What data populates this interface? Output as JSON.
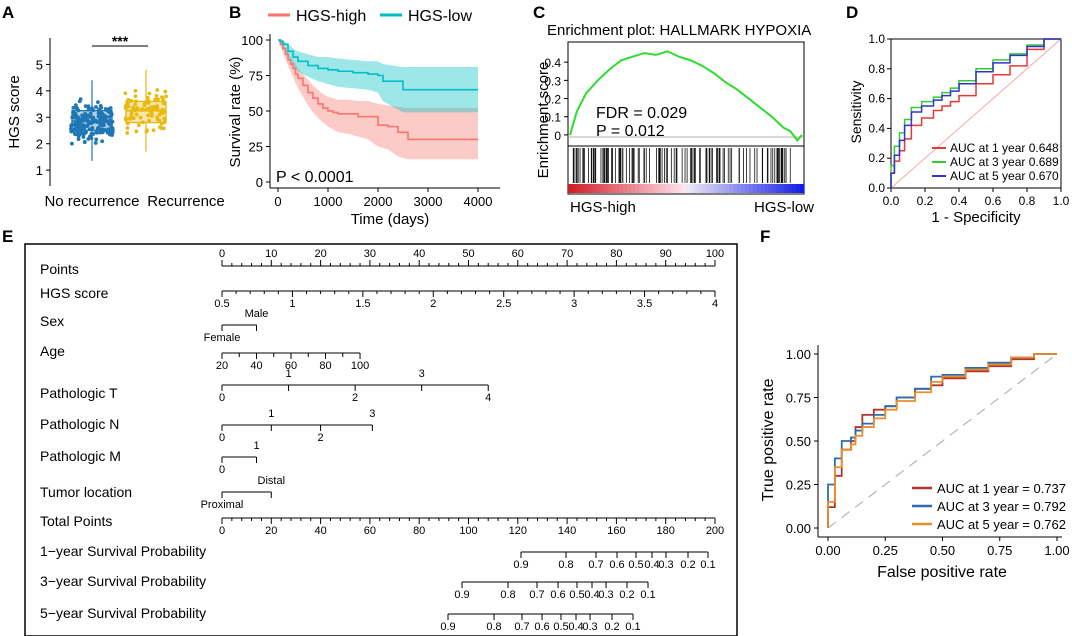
{
  "colors": {
    "red": "#F8766D",
    "teal": "#00BFC4",
    "blue": "#1F77B4",
    "yellow": "#E8B90F",
    "green": "#2EDB2E",
    "roc_red": "#E53935",
    "roc_green": "#33CC33",
    "roc_blue": "#3333CC",
    "f_red": "#B5332E",
    "f_blue": "#2A6DB0",
    "f_orange": "#E98E2B"
  },
  "panels": {
    "A": {
      "letter": "A",
      "ylabel": "HGS score",
      "yticks": [
        "1",
        "2",
        "3",
        "4",
        "5"
      ],
      "groups": [
        "No recurrence",
        "Recurrence"
      ],
      "sig": "***"
    },
    "B": {
      "letter": "B",
      "legend": [
        "HGS-high",
        "HGS-low"
      ],
      "ylabel": "Survival rate (%)",
      "xlabel": "Time (days)",
      "yticks": [
        "0",
        "25",
        "50",
        "75",
        "100"
      ],
      "xticks": [
        "0",
        "1000",
        "2000",
        "3000",
        "4000"
      ],
      "pval": "P < 0.0001"
    },
    "C": {
      "letter": "C",
      "title": "Enrichment plot: HALLMARK HYPOXIA",
      "ylabel": "Enrichment score",
      "yticks": [
        "0",
        "0.1",
        "0.2",
        "0.3",
        "0.4"
      ],
      "fdr": "FDR = 0.029",
      "pval": "P  = 0.012",
      "left_label": "HGS-high",
      "right_label": "HGS-low"
    },
    "D": {
      "letter": "D",
      "ylabel": "Sensitivity",
      "xlabel": "1 - Specificity",
      "ticks": [
        "0.0",
        "0.2",
        "0.4",
        "0.6",
        "0.8",
        "1.0"
      ],
      "legend": [
        "AUC at 1 year 0.648",
        "AUC at 3 year 0.689",
        "AUC at 5 year 0.670"
      ]
    },
    "E": {
      "letter": "E",
      "rows": [
        {
          "label": "Points",
          "ticks": [
            "0",
            "10",
            "20",
            "30",
            "40",
            "50",
            "60",
            "70",
            "80",
            "90",
            "100"
          ]
        },
        {
          "label": "HGS score",
          "ticks": [
            "0.5",
            "1",
            "1.5",
            "2",
            "2.5",
            "3",
            "3.5",
            "4"
          ]
        },
        {
          "label": "Sex",
          "ticks": [
            "Female",
            "Male"
          ]
        },
        {
          "label": "Age",
          "ticks": [
            "20",
            "40",
            "60",
            "80",
            "100"
          ]
        },
        {
          "label": "Pathologic T",
          "ticks": [
            "0",
            "1",
            "2",
            "3",
            "4"
          ]
        },
        {
          "label": "Pathologic N",
          "ticks": [
            "0",
            "1",
            "2",
            "3"
          ]
        },
        {
          "label": "Pathologic M",
          "ticks": [
            "0",
            "1"
          ]
        },
        {
          "label": "Tumor location",
          "ticks": [
            "Proximal",
            "Distal"
          ]
        },
        {
          "label": "Total Points",
          "ticks": [
            "0",
            "20",
            "40",
            "60",
            "80",
            "100",
            "120",
            "140",
            "160",
            "180",
            "200"
          ]
        },
        {
          "label": "1−year Survival Probability",
          "ticks": [
            "0.9",
            "0.8",
            "0.7",
            "0.6",
            "0.5",
            "0.4",
            "0.3",
            "0.2",
            "0.1"
          ]
        },
        {
          "label": "3−year Survival Probability",
          "ticks": [
            "0.9",
            "0.8",
            "0.7",
            "0.6",
            "0.5",
            "0.4",
            "0.3",
            "0.2",
            "0.1"
          ]
        },
        {
          "label": "5−year Survival Probability",
          "ticks": [
            "0.9",
            "0.8",
            "0.7",
            "0.6",
            "0.5",
            "0.4",
            "0.3",
            "0.2",
            "0.1"
          ]
        }
      ]
    },
    "F": {
      "letter": "F",
      "ylabel": "True positive rate",
      "xlabel": "False positive rate",
      "ticks": [
        "0.00",
        "0.25",
        "0.50",
        "0.75",
        "1.00"
      ],
      "legend": [
        "AUC at 1 year = 0.737",
        "AUC at 3 year = 0.792",
        "AUC at 5 year = 0.762"
      ]
    }
  },
  "chart_data": [
    {
      "type": "scatter",
      "panel": "A",
      "title": "",
      "xlabel": "",
      "ylabel": "HGS score",
      "categories": [
        "No recurrence",
        "Recurrence"
      ],
      "ylim": [
        0.4,
        6.0
      ],
      "boxes": [
        {
          "name": "No recurrence",
          "q1": 2.5,
          "median": 2.85,
          "q3": 3.25,
          "whisker_low": 1.35,
          "whisker_high": 4.4
        },
        {
          "name": "Recurrence",
          "q1": 2.8,
          "median": 3.25,
          "q3": 3.6,
          "whisker_low": 1.7,
          "whisker_high": 4.8
        }
      ],
      "annotation": "***"
    },
    {
      "type": "line",
      "panel": "B",
      "title": "",
      "xlabel": "Time (days)",
      "ylabel": "Survival rate (%)",
      "xlim": [
        0,
        4200
      ],
      "ylim": [
        0,
        100
      ],
      "series": [
        {
          "name": "HGS-high",
          "x": [
            0,
            50,
            100,
            150,
            200,
            250,
            300,
            350,
            400,
            500,
            600,
            700,
            800,
            900,
            1000,
            1100,
            1200,
            1400,
            1600,
            1800,
            2000,
            2200,
            2400,
            2600,
            4000
          ],
          "y": [
            100,
            97,
            94,
            90,
            86,
            83,
            80,
            76,
            73,
            68,
            63,
            59,
            55,
            52,
            50,
            49,
            48,
            48,
            46,
            46,
            40,
            39,
            35,
            30,
            30
          ],
          "lower": [
            100,
            95,
            91,
            86,
            82,
            78,
            74,
            70,
            66,
            60,
            54,
            49,
            45,
            42,
            39,
            37,
            35,
            34,
            32,
            30,
            25,
            23,
            18,
            16,
            16
          ],
          "upper": [
            100,
            99,
            97,
            94,
            91,
            88,
            86,
            83,
            80,
            76,
            72,
            68,
            65,
            62,
            60,
            59,
            58,
            58,
            57,
            57,
            55,
            54,
            53,
            52,
            52
          ]
        },
        {
          "name": "HGS-low",
          "x": [
            0,
            50,
            100,
            200,
            300,
            400,
            600,
            800,
            1000,
            1200,
            1500,
            1800,
            2000,
            2100,
            2500,
            4000
          ],
          "y": [
            100,
            99,
            97,
            92,
            88,
            85,
            82,
            80,
            79,
            78,
            77,
            76,
            75,
            71,
            65,
            65
          ],
          "lower": [
            100,
            97,
            94,
            87,
            82,
            78,
            74,
            71,
            69,
            67,
            66,
            65,
            63,
            57,
            49,
            49
          ],
          "upper": [
            100,
            100,
            100,
            97,
            94,
            92,
            90,
            88,
            88,
            87,
            86,
            85,
            85,
            83,
            81,
            81
          ]
        }
      ],
      "annotation": "P < 0.0001"
    },
    {
      "type": "line",
      "panel": "C",
      "title": "Enrichment plot: HALLMARK HYPOXIA",
      "xlabel": "",
      "ylabel": "Enrichment score",
      "ylim": [
        -0.05,
        0.5
      ],
      "series": [
        {
          "name": "Enrichment score",
          "x": [
            0,
            0.03,
            0.07,
            0.12,
            0.17,
            0.22,
            0.27,
            0.32,
            0.37,
            0.42,
            0.47,
            0.52,
            0.57,
            0.62,
            0.67,
            0.72,
            0.77,
            0.82,
            0.87,
            0.92,
            0.95,
            0.98,
            1.0
          ],
          "y": [
            0,
            0.13,
            0.23,
            0.3,
            0.36,
            0.41,
            0.43,
            0.45,
            0.44,
            0.46,
            0.43,
            0.41,
            0.38,
            0.34,
            0.29,
            0.25,
            0.2,
            0.15,
            0.1,
            0.04,
            0.02,
            -0.03,
            0
          ]
        }
      ],
      "annotation": [
        "FDR = 0.029",
        "P  = 0.012"
      ]
    },
    {
      "type": "line",
      "panel": "D",
      "title": "",
      "xlabel": "1 - Specificity",
      "ylabel": "Sensitivity",
      "xlim": [
        0,
        1
      ],
      "ylim": [
        0,
        1
      ],
      "series": [
        {
          "name": "AUC at 1 year 0.648",
          "x": [
            0,
            0.02,
            0.05,
            0.08,
            0.12,
            0.18,
            0.25,
            0.3,
            0.35,
            0.4,
            0.5,
            0.6,
            0.7,
            0.8,
            0.9,
            1.0
          ],
          "y": [
            0,
            0.1,
            0.18,
            0.25,
            0.33,
            0.42,
            0.47,
            0.52,
            0.55,
            0.58,
            0.62,
            0.7,
            0.76,
            0.82,
            0.93,
            1.0
          ]
        },
        {
          "name": "AUC at 3 year 0.689",
          "x": [
            0,
            0.02,
            0.05,
            0.08,
            0.12,
            0.18,
            0.25,
            0.3,
            0.35,
            0.4,
            0.5,
            0.6,
            0.7,
            0.8,
            0.9,
            1.0
          ],
          "y": [
            0,
            0.15,
            0.28,
            0.37,
            0.46,
            0.54,
            0.58,
            0.61,
            0.64,
            0.67,
            0.72,
            0.8,
            0.86,
            0.9,
            0.96,
            1.0
          ]
        },
        {
          "name": "AUC at 5 year 0.670",
          "x": [
            0,
            0.02,
            0.05,
            0.08,
            0.12,
            0.18,
            0.25,
            0.3,
            0.35,
            0.4,
            0.5,
            0.6,
            0.7,
            0.8,
            0.9,
            1.0
          ],
          "y": [
            0,
            0.1,
            0.22,
            0.32,
            0.42,
            0.51,
            0.55,
            0.59,
            0.62,
            0.65,
            0.7,
            0.78,
            0.84,
            0.89,
            0.95,
            1.0
          ]
        }
      ]
    },
    {
      "type": "line",
      "panel": "F",
      "title": "",
      "xlabel": "False positive rate",
      "ylabel": "True positive rate",
      "xlim": [
        0,
        1
      ],
      "ylim": [
        0,
        1
      ],
      "series": [
        {
          "name": "AUC at 1 year = 0.737",
          "x": [
            0,
            0.03,
            0.06,
            0.1,
            0.12,
            0.15,
            0.2,
            0.25,
            0.3,
            0.38,
            0.45,
            0.5,
            0.6,
            0.7,
            0.8,
            0.9,
            1.0
          ],
          "y": [
            0,
            0.12,
            0.3,
            0.45,
            0.5,
            0.58,
            0.65,
            0.68,
            0.7,
            0.75,
            0.8,
            0.82,
            0.86,
            0.9,
            0.93,
            0.97,
            1.0
          ]
        },
        {
          "name": "AUC at 3 year = 0.792",
          "x": [
            0,
            0.03,
            0.06,
            0.1,
            0.12,
            0.15,
            0.2,
            0.25,
            0.3,
            0.38,
            0.45,
            0.5,
            0.6,
            0.7,
            0.8,
            0.9,
            1.0
          ],
          "y": [
            0,
            0.25,
            0.4,
            0.5,
            0.52,
            0.56,
            0.6,
            0.65,
            0.7,
            0.75,
            0.8,
            0.87,
            0.88,
            0.92,
            0.95,
            0.98,
            1.0
          ]
        },
        {
          "name": "AUC at 5 year = 0.762",
          "x": [
            0,
            0.03,
            0.06,
            0.1,
            0.12,
            0.15,
            0.2,
            0.25,
            0.3,
            0.38,
            0.45,
            0.5,
            0.6,
            0.7,
            0.8,
            0.9,
            1.0
          ],
          "y": [
            0,
            0.15,
            0.35,
            0.45,
            0.48,
            0.53,
            0.58,
            0.63,
            0.68,
            0.73,
            0.78,
            0.84,
            0.87,
            0.91,
            0.94,
            0.98,
            1.0
          ]
        }
      ]
    }
  ]
}
